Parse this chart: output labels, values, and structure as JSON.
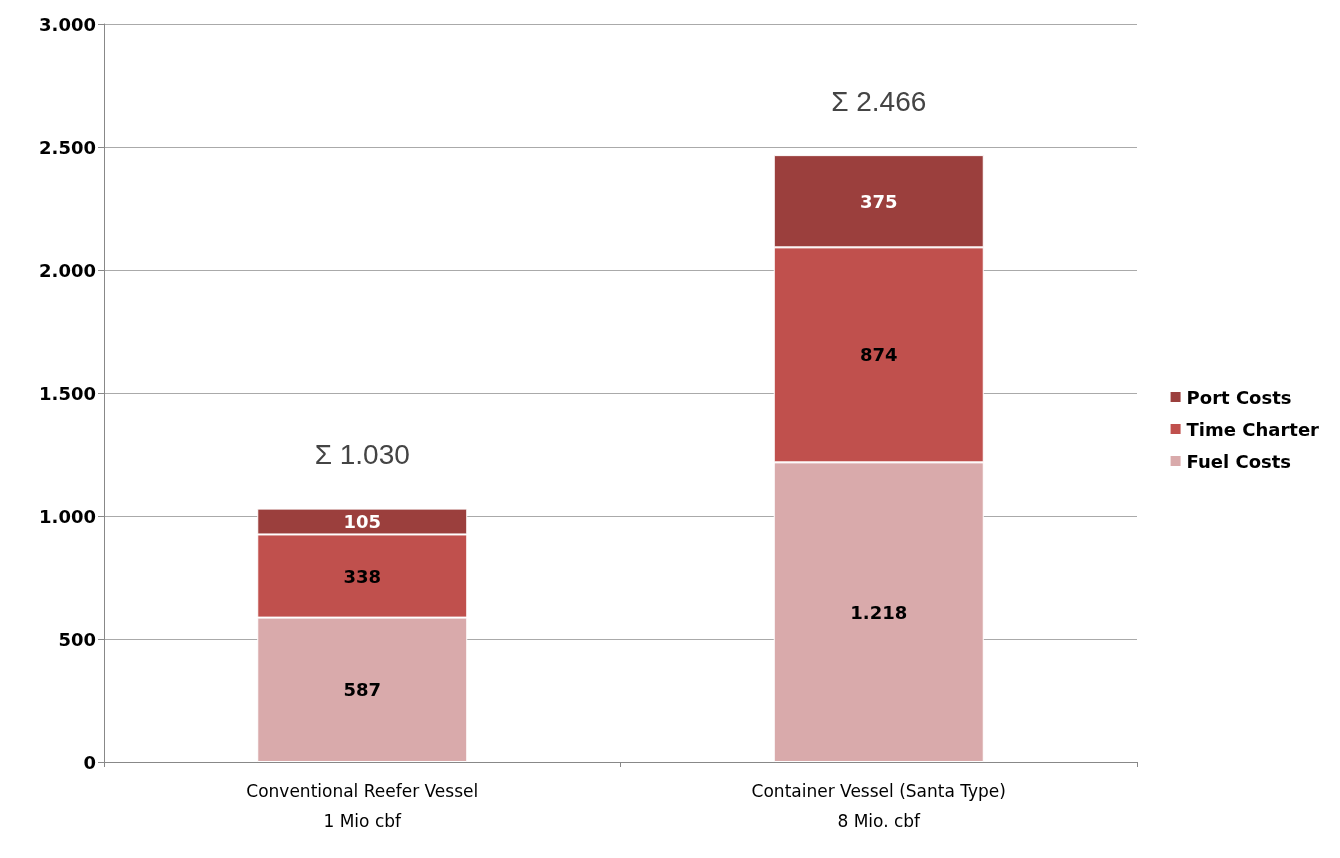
{
  "chart_data": {
    "type": "bar",
    "stacked": true,
    "categories": [
      "Conventional Reefer Vessel\n1 Mio cbf",
      "Container Vessel (Santa Type)\n8 Mio. cbf"
    ],
    "series": [
      {
        "name": "Fuel Costs",
        "color": "#d9aaab",
        "values": [
          587,
          1218
        ],
        "value_labels": [
          "587",
          "1.218"
        ]
      },
      {
        "name": "Time Charter",
        "color": "#c0504d",
        "values": [
          338,
          874
        ],
        "value_labels": [
          "338",
          "874"
        ]
      },
      {
        "name": "Port Costs",
        "color": "#9b3f3d",
        "values": [
          105,
          375
        ],
        "value_labels": [
          "105",
          "375"
        ]
      }
    ],
    "totals": [
      "Σ 1.030",
      "Σ 2.466"
    ],
    "ylim": [
      0,
      3000
    ],
    "yticks": [
      0,
      500,
      {
        "value": 1000,
        "label": "1.000"
      },
      {
        "value": 1500,
        "label": "1.500"
      },
      {
        "value": 2000,
        "label": "2.000"
      },
      {
        "value": 2500,
        "label": "2.500"
      },
      {
        "value": 3000,
        "label": "3.000"
      }
    ],
    "grid": "y",
    "legend": "right"
  }
}
